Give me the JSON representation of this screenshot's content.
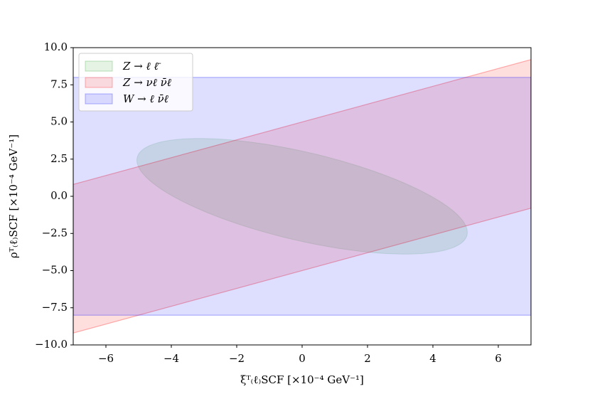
{
  "chart_data": {
    "type": "region",
    "xlabel": "ξᵀ₍ℓ₎SCF [×10⁻⁴ GeV⁻¹]",
    "ylabel": "ρᵀ₍ℓ₎SCF [×10⁻⁴ GeV⁻¹]",
    "xlim": [
      -7,
      7
    ],
    "ylim": [
      -10,
      10
    ],
    "xticks": [
      {
        "value": -6,
        "label": "−6"
      },
      {
        "value": -4,
        "label": "−4"
      },
      {
        "value": -2,
        "label": "−2"
      },
      0,
      2,
      4,
      6
    ],
    "yticks": [
      {
        "value": -10,
        "label": "−10.0"
      },
      {
        "value": -7.5,
        "label": "−7.5"
      },
      {
        "value": -5,
        "label": "−5.0"
      },
      {
        "value": -2.5,
        "label": "−2.5"
      },
      {
        "value": 0,
        "label": "0.0"
      },
      {
        "value": 2.5,
        "label": "2.5"
      },
      {
        "value": 5,
        "label": "5.0"
      },
      {
        "value": 7.5,
        "label": "7.5"
      },
      {
        "value": 10,
        "label": "10.0"
      }
    ],
    "legend": "upper left",
    "series": [
      {
        "name": "Z → ℓ ℓ̄",
        "color": "#2ca02c",
        "kind": "ellipse",
        "center": [
          0,
          0
        ],
        "width": 11.6,
        "height": 5.3,
        "angle": -33.5
      },
      {
        "name": "Z → νℓ ν̄ℓ",
        "color": "#ff0000",
        "kind": "band",
        "x": [
          -7,
          7
        ],
        "upper": [
          0.8,
          9.2
        ],
        "lower": [
          -9.2,
          -0.8
        ]
      },
      {
        "name": "W → ℓ ν̄ℓ",
        "color": "#0000ff",
        "kind": "band",
        "x": [
          -7,
          7
        ],
        "upper": [
          8,
          8
        ],
        "lower": [
          -8,
          -8
        ]
      }
    ]
  }
}
